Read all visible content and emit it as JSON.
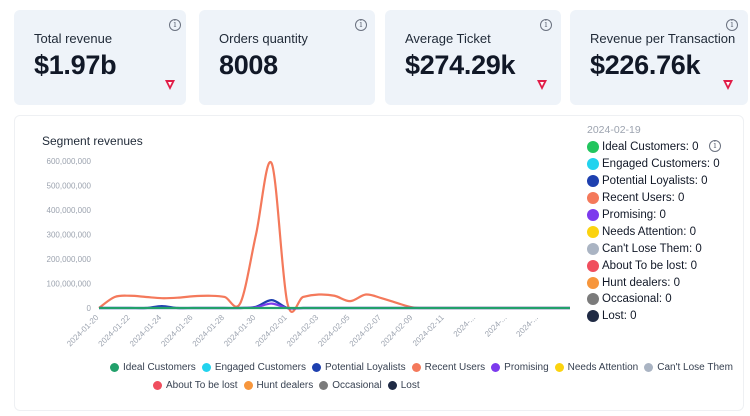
{
  "kpis": [
    {
      "label": "Total revenue",
      "value": "$1.97b"
    },
    {
      "label": "Orders quantity",
      "value": "8008"
    },
    {
      "label": "Average Ticket",
      "value": "$274.29k"
    },
    {
      "label": "Revenue per Transaction",
      "value": "$226.76k"
    }
  ],
  "icons": {
    "info": "info-icon",
    "brand": "brand-logo-icon"
  },
  "info_glyph": "i",
  "colors": {
    "brand": "#e11d48",
    "card_bg": "#eef3f9"
  },
  "chart_data": {
    "type": "line",
    "title": "Segment revenues",
    "x": [
      "2024-01-20",
      "2024-01-21",
      "2024-01-22",
      "2024-01-23",
      "2024-01-24",
      "2024-01-25",
      "2024-01-26",
      "2024-01-27",
      "2024-01-28",
      "2024-01-29",
      "2024-01-30",
      "2024-01-31",
      "2024-02-01",
      "2024-02-02",
      "2024-02-03",
      "2024-02-04",
      "2024-02-05",
      "2024-02-06",
      "2024-02-07",
      "2024-02-08",
      "2024-02-09",
      "2024-02-10",
      "2024-02-11",
      "2024-02-12",
      "2024-02-13",
      "2024-02-14",
      "2024-02-15",
      "2024-02-16",
      "2024-02-17",
      "2024-02-18",
      "2024-02-19"
    ],
    "x_tick_labels": [
      "2024-01-20",
      "2024-01-22",
      "2024-01-24",
      "2024-01-26",
      "2024-01-28",
      "2024-01-30",
      "2024-02-01",
      "2024-02-03",
      "2024-02-05",
      "2024-02-07",
      "2024-02-09",
      "2024-02-11",
      "2024-...",
      "2024-...",
      "2024-..."
    ],
    "y_ticks": [
      "0",
      "100,000,000",
      "200,000,000",
      "300,000,000",
      "400,000,000",
      "500,000,000",
      "600,000,000"
    ],
    "ylim": [
      0,
      600000000
    ],
    "series": [
      {
        "name": "Recent Users",
        "color": "#f4795b",
        "values": [
          0,
          45000000,
          50000000,
          45000000,
          40000000,
          42000000,
          48000000,
          50000000,
          45000000,
          20000000,
          300000000,
          590000000,
          20000000,
          45000000,
          55000000,
          50000000,
          28000000,
          55000000,
          40000000,
          20000000,
          2000000,
          0,
          0,
          0,
          0,
          0,
          0,
          0,
          0,
          0,
          0
        ]
      },
      {
        "name": "Potential Loyalists",
        "color": "#1e40af",
        "values": [
          0,
          0,
          0,
          0,
          8000000,
          0,
          0,
          0,
          0,
          0,
          5000000,
          32000000,
          0,
          0,
          0,
          0,
          0,
          0,
          0,
          0,
          0,
          0,
          0,
          0,
          0,
          0,
          0,
          0,
          0,
          0,
          0
        ]
      },
      {
        "name": "Promising",
        "color": "#7c3aed",
        "values": [
          0,
          0,
          0,
          0,
          0,
          0,
          0,
          0,
          0,
          0,
          3000000,
          18000000,
          0,
          0,
          0,
          0,
          0,
          0,
          0,
          0,
          0,
          0,
          0,
          0,
          0,
          0,
          0,
          0,
          0,
          0,
          0
        ]
      },
      {
        "name": "Ideal Customers",
        "color": "#22a06b",
        "values": [
          0,
          0,
          0,
          0,
          0,
          0,
          0,
          0,
          0,
          0,
          0,
          0,
          0,
          0,
          0,
          0,
          0,
          0,
          0,
          0,
          0,
          0,
          0,
          0,
          0,
          0,
          0,
          0,
          0,
          0,
          0
        ]
      }
    ],
    "tooltip": {
      "date": "2024-02-19",
      "rows": [
        {
          "label": "Ideal Customers: 0",
          "color": "#22c55e"
        },
        {
          "label": "Engaged Customers: 0",
          "color": "#22d3ee"
        },
        {
          "label": "Potential Loyalists: 0",
          "color": "#1e40af"
        },
        {
          "label": "Recent Users: 0",
          "color": "#f4795b"
        },
        {
          "label": "Promising: 0",
          "color": "#7c3aed"
        },
        {
          "label": "Needs Attention: 0",
          "color": "#fbd30f"
        },
        {
          "label": "Can't Lose Them: 0",
          "color": "#aab4c3"
        },
        {
          "label": "About To be lost: 0",
          "color": "#f04e5e"
        },
        {
          "label": "Hunt dealers: 0",
          "color": "#f7963c"
        },
        {
          "label": "Occasional: 0",
          "color": "#7b7b7b"
        },
        {
          "label": "Lost: 0",
          "color": "#1f2a44"
        }
      ]
    },
    "legend": [
      [
        {
          "name": "Ideal Customers",
          "color": "#22a06b"
        },
        {
          "name": "Engaged Customers",
          "color": "#22d3ee"
        },
        {
          "name": "Potential Loyalists",
          "color": "#1e40af"
        },
        {
          "name": "Recent Users",
          "color": "#f4795b"
        },
        {
          "name": "Promising",
          "color": "#7c3aed"
        },
        {
          "name": "Needs Attention",
          "color": "#fbd30f"
        },
        {
          "name": "Can't Lose Them",
          "color": "#aab4c3"
        }
      ],
      [
        {
          "name": "About To be lost",
          "color": "#f04e5e"
        },
        {
          "name": "Hunt dealers",
          "color": "#f7963c"
        },
        {
          "name": "Occasional",
          "color": "#7b7b7b"
        },
        {
          "name": "Lost",
          "color": "#1f2a44"
        }
      ]
    ]
  }
}
